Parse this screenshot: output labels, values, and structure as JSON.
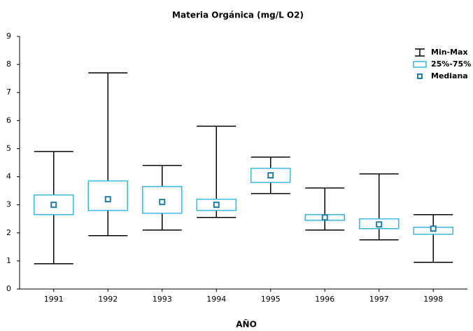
{
  "chart_data": {
    "type": "box",
    "title": "Materia Orgánica (mg/L O2)",
    "xlabel": "AÑO",
    "categories": [
      "1991",
      "1992",
      "1993",
      "1994",
      "1995",
      "1996",
      "1997",
      "1998"
    ],
    "min": [
      0.9,
      1.9,
      2.1,
      2.55,
      3.4,
      2.1,
      1.75,
      0.95
    ],
    "q1": [
      2.65,
      2.8,
      2.7,
      2.8,
      3.8,
      2.45,
      2.15,
      1.95
    ],
    "median": [
      3.0,
      3.2,
      3.1,
      3.0,
      4.05,
      2.55,
      2.3,
      2.15
    ],
    "q3": [
      3.35,
      3.85,
      3.65,
      3.2,
      4.3,
      2.65,
      2.5,
      2.2
    ],
    "max": [
      4.9,
      7.7,
      4.4,
      5.8,
      4.7,
      3.6,
      4.1,
      2.65
    ],
    "ylim": [
      0,
      9
    ],
    "yticks": [
      0,
      1,
      2,
      3,
      4,
      5,
      6,
      7,
      8,
      9
    ],
    "legend": {
      "position": "upper right",
      "entries": [
        {
          "name": "Min-Max",
          "color": "#000000"
        },
        {
          "name": "25%-75%",
          "color": "#3cb8e0"
        },
        {
          "name": "Mediana",
          "color": "#1f7fa6"
        }
      ]
    }
  }
}
